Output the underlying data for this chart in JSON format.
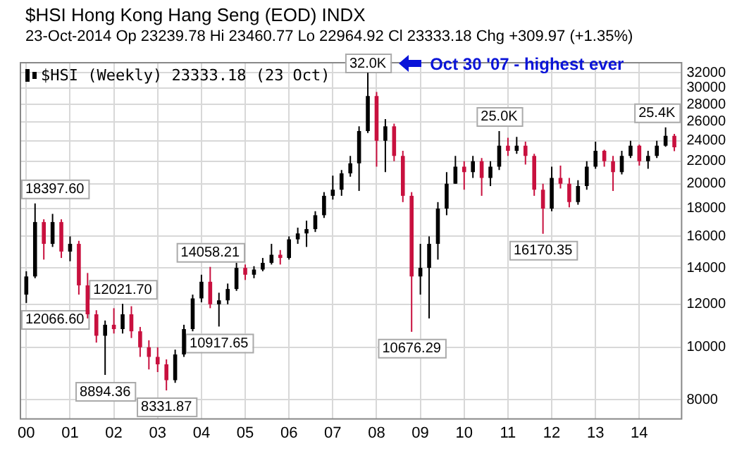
{
  "chart_data": {
    "type": "candlestick",
    "title": "$HSI Hong Kong Hang Seng (EOD) INDX",
    "subtitle": "23-Oct-2014 Op 23239.78 Hi 23460.77 Lo 22964.92 Cl 23333.18 Chg +309.97 (+1.35%)",
    "log": true,
    "grid": true,
    "legend": "top left",
    "xlim": [
      1999.85,
      2014.95
    ],
    "xticks": [
      {
        "value": 2000,
        "label": "00"
      },
      {
        "value": 2001,
        "label": "01"
      },
      {
        "value": 2002,
        "label": "02"
      },
      {
        "value": 2003,
        "label": "03"
      },
      {
        "value": 2004,
        "label": "04"
      },
      {
        "value": 2005,
        "label": "05"
      },
      {
        "value": 2006,
        "label": "06"
      },
      {
        "value": 2007,
        "label": "07"
      },
      {
        "value": 2008,
        "label": "08"
      },
      {
        "value": 2009,
        "label": "09"
      },
      {
        "value": 2010,
        "label": "10"
      },
      {
        "value": 2011,
        "label": "11"
      },
      {
        "value": 2012,
        "label": "12"
      },
      {
        "value": 2013,
        "label": "13"
      },
      {
        "value": 2014,
        "label": "14"
      }
    ],
    "ylim": [
      7400,
      33500
    ],
    "yticks": [
      8000,
      10000,
      12000,
      14000,
      16000,
      18000,
      20000,
      22000,
      24000,
      26000,
      28000,
      30000,
      32000
    ],
    "annotations": [
      {
        "text": "12066.60",
        "x": 2000.0,
        "y": 12066.6
      },
      {
        "text": "18397.60",
        "x": 2000.2,
        "y": 18397.6
      },
      {
        "text": "8894.36",
        "x": 2001.8,
        "y": 8894.36
      },
      {
        "text": "12021.70",
        "x": 2002.2,
        "y": 12021.7
      },
      {
        "text": "8331.87",
        "x": 2003.2,
        "y": 8331.87
      },
      {
        "text": "14058.21",
        "x": 2004.2,
        "y": 14058.21
      },
      {
        "text": "10917.65",
        "x": 2004.4,
        "y": 10917.65
      },
      {
        "text": "32.0K",
        "x": 2007.8,
        "y": 32000
      },
      "Oct 30 '07 - highest ever",
      {
        "text": "10676.29",
        "x": 2008.8,
        "y": 10676.29
      },
      {
        "text": "25.0K",
        "x": 2010.8,
        "y": 25000
      },
      {
        "text": "16170.35",
        "x": 2011.8,
        "y": 16170.35
      },
      {
        "text": "25.4K",
        "x": 2014.6,
        "y": 25400
      }
    ],
    "series": [
      {
        "name": "$HSI (Weekly) 23333.18 (23 Oct)",
        "x": [
          2000.0,
          2000.2,
          2000.4,
          2000.6,
          2000.8,
          2001.0,
          2001.2,
          2001.4,
          2001.6,
          2001.8,
          2002.0,
          2002.2,
          2002.4,
          2002.6,
          2002.8,
          2003.0,
          2003.2,
          2003.4,
          2003.6,
          2003.8,
          2004.0,
          2004.2,
          2004.4,
          2004.6,
          2004.8,
          2005.0,
          2005.2,
          2005.4,
          2005.6,
          2005.8,
          2006.0,
          2006.2,
          2006.4,
          2006.6,
          2006.8,
          2007.0,
          2007.2,
          2007.4,
          2007.6,
          2007.8,
          2008.0,
          2008.2,
          2008.4,
          2008.6,
          2008.8,
          2009.0,
          2009.2,
          2009.4,
          2009.6,
          2009.8,
          2010.0,
          2010.2,
          2010.4,
          2010.6,
          2010.8,
          2011.0,
          2011.2,
          2011.4,
          2011.6,
          2011.8,
          2012.0,
          2012.2,
          2012.4,
          2012.6,
          2012.8,
          2013.0,
          2013.2,
          2013.4,
          2013.6,
          2013.8,
          2014.0,
          2014.2,
          2014.4,
          2014.6,
          2014.8
        ],
        "ohlc": [
          [
            12500,
            13800,
            12066.6,
            13500
          ],
          [
            13500,
            18397.6,
            13400,
            17000
          ],
          [
            17000,
            17200,
            14500,
            15500
          ],
          [
            15500,
            17600,
            15300,
            17000
          ],
          [
            17000,
            17200,
            14600,
            15000
          ],
          [
            15000,
            16000,
            14400,
            15500
          ],
          [
            15500,
            15700,
            12500,
            13000
          ],
          [
            13000,
            13700,
            11300,
            11500
          ],
          [
            11500,
            11700,
            10200,
            10500
          ],
          [
            10500,
            11200,
            8894.36,
            11000
          ],
          [
            11000,
            11800,
            10600,
            10800
          ],
          [
            10800,
            12021.7,
            10600,
            11500
          ],
          [
            11500,
            11900,
            10400,
            10700
          ],
          [
            10700,
            10900,
            9600,
            10000
          ],
          [
            10000,
            10300,
            9100,
            9600
          ],
          [
            9600,
            10000,
            9000,
            9300
          ],
          [
            9300,
            9500,
            8331.87,
            8700
          ],
          [
            8700,
            9900,
            8600,
            9700
          ],
          [
            9700,
            11000,
            9600,
            10800
          ],
          [
            10800,
            12500,
            10700,
            12300
          ],
          [
            12300,
            13600,
            12100,
            13200
          ],
          [
            13200,
            14058.21,
            11800,
            12000
          ],
          [
            12000,
            12600,
            10917.65,
            12200
          ],
          [
            12200,
            13100,
            12000,
            12800
          ],
          [
            12800,
            14300,
            12700,
            14000
          ],
          [
            14000,
            14200,
            13300,
            13600
          ],
          [
            13600,
            14100,
            13400,
            13900
          ],
          [
            13900,
            14600,
            13800,
            14300
          ],
          [
            14300,
            15500,
            14200,
            14800
          ],
          [
            14800,
            15100,
            14200,
            14600
          ],
          [
            14600,
            16000,
            14500,
            15800
          ],
          [
            15800,
            16600,
            15500,
            16200
          ],
          [
            16200,
            17100,
            15300,
            16500
          ],
          [
            16500,
            17800,
            16300,
            17500
          ],
          [
            17500,
            19300,
            17300,
            19000
          ],
          [
            19000,
            20700,
            18700,
            19500
          ],
          [
            19500,
            21200,
            19000,
            20900
          ],
          [
            20900,
            22500,
            20600,
            21800
          ],
          [
            21800,
            25500,
            19400,
            25000
          ],
          [
            25000,
            32000,
            24800,
            29000
          ],
          [
            29000,
            29500,
            21500,
            24000
          ],
          [
            24000,
            26300,
            21000,
            25500
          ],
          [
            25500,
            25800,
            22000,
            22500
          ],
          [
            22500,
            23000,
            18500,
            19000
          ],
          [
            19000,
            19300,
            10676.29,
            13500
          ],
          [
            13500,
            15500,
            12500,
            14000
          ],
          [
            14000,
            16000,
            11300,
            15500
          ],
          [
            15500,
            18500,
            14500,
            18000
          ],
          [
            18000,
            21000,
            17500,
            20000
          ],
          [
            20000,
            22500,
            20000,
            21500
          ],
          [
            21500,
            22000,
            19500,
            21000
          ],
          [
            21000,
            22500,
            20500,
            22000
          ],
          [
            22000,
            22300,
            19000,
            20500
          ],
          [
            20500,
            22000,
            19800,
            21500
          ],
          [
            21500,
            25000,
            21200,
            23500
          ],
          [
            23500,
            24300,
            22500,
            23000
          ],
          [
            23000,
            24400,
            22700,
            23500
          ],
          [
            23500,
            23900,
            21700,
            22500
          ],
          [
            22500,
            22700,
            19000,
            19500
          ],
          [
            19500,
            20000,
            16170.35,
            18000
          ],
          [
            18000,
            21500,
            17800,
            20500
          ],
          [
            20500,
            21600,
            19600,
            20000
          ],
          [
            20000,
            20500,
            18100,
            18500
          ],
          [
            18500,
            20300,
            18300,
            19800
          ],
          [
            19800,
            22000,
            19500,
            21500
          ],
          [
            21500,
            23900,
            21300,
            23000
          ],
          [
            23000,
            23100,
            21500,
            22000
          ],
          [
            22000,
            22500,
            19400,
            21000
          ],
          [
            21000,
            23000,
            20800,
            22500
          ],
          [
            22500,
            24000,
            22300,
            23500
          ],
          [
            23500,
            23600,
            21600,
            22000
          ],
          [
            22000,
            23000,
            21300,
            22500
          ],
          [
            22500,
            24000,
            22300,
            23500
          ],
          [
            23500,
            25400,
            23400,
            24500
          ],
          [
            24500,
            24700,
            22964.92,
            23333.18
          ]
        ],
        "colors": [
          "#000000",
          "#000000",
          "#c8103e",
          "#000000",
          "#c8103e",
          "#000000",
          "#c8103e",
          "#c8103e",
          "#c8103e",
          "#000000",
          "#c8103e",
          "#000000",
          "#c8103e",
          "#c8103e",
          "#c8103e",
          "#c8103e",
          "#c8103e",
          "#000000",
          "#000000",
          "#000000",
          "#000000",
          "#c8103e",
          "#000000",
          "#000000",
          "#000000",
          "#c8103e",
          "#000000",
          "#000000",
          "#000000",
          "#c8103e",
          "#000000",
          "#000000",
          "#000000",
          "#000000",
          "#000000",
          "#000000",
          "#000000",
          "#000000",
          "#000000",
          "#000000",
          "#c8103e",
          "#000000",
          "#c8103e",
          "#c8103e",
          "#c8103e",
          "#000000",
          "#000000",
          "#000000",
          "#000000",
          "#000000",
          "#c8103e",
          "#000000",
          "#c8103e",
          "#000000",
          "#000000",
          "#c8103e",
          "#000000",
          "#c8103e",
          "#c8103e",
          "#c8103e",
          "#000000",
          "#c8103e",
          "#c8103e",
          "#000000",
          "#000000",
          "#000000",
          "#c8103e",
          "#c8103e",
          "#000000",
          "#000000",
          "#c8103e",
          "#000000",
          "#000000",
          "#000000",
          "#c8103e"
        ]
      }
    ]
  }
}
